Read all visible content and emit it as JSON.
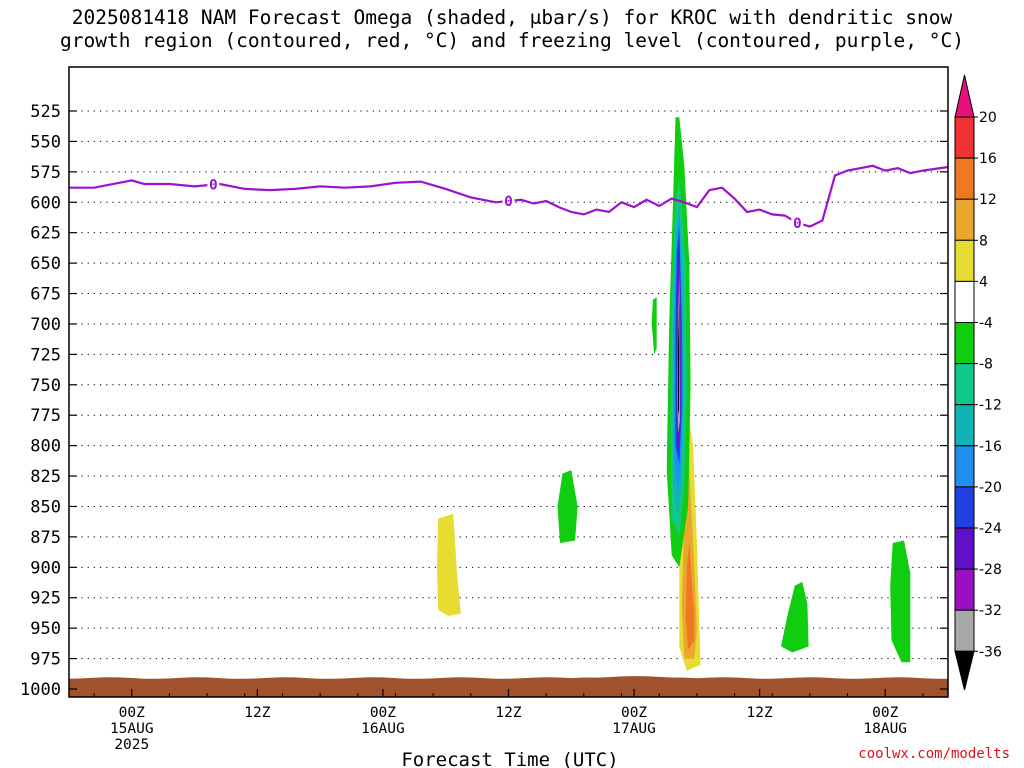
{
  "chart_data": {
    "type": "heatmap",
    "title_lines": [
      "2025081418 NAM Forecast Omega (shaded, μbar/s) for KROC with dendritic snow",
      "growth region (contoured, red, °C) and freezing level (contoured, purple, °C)"
    ],
    "xlabel": "Forecast Time (UTC)",
    "credit": "coolwx.com/modelts",
    "y_ticks": [
      525,
      550,
      575,
      600,
      625,
      650,
      675,
      700,
      725,
      750,
      775,
      800,
      825,
      850,
      875,
      900,
      925,
      950,
      975,
      1000
    ],
    "y_range": [
      1000,
      505
    ],
    "x_range_hours": [
      -5,
      65
    ],
    "x_ticks": [
      {
        "hour": 0,
        "lines": [
          "00Z",
          "15AUG",
          "2025"
        ]
      },
      {
        "hour": 10,
        "lines": [
          "12Z"
        ]
      },
      {
        "hour": 20,
        "lines": [
          "00Z",
          "16AUG"
        ]
      },
      {
        "hour": 30,
        "lines": [
          "12Z"
        ]
      },
      {
        "hour": 40,
        "lines": [
          "00Z",
          "17AUG"
        ]
      },
      {
        "hour": 50,
        "lines": [
          "12Z"
        ]
      },
      {
        "hour": 60,
        "lines": [
          "00Z",
          "18AUG"
        ]
      }
    ],
    "grid": true,
    "colorbar": {
      "labels": [
        "20",
        "16",
        "12",
        "8",
        "4",
        "-4",
        "-8",
        "-12",
        "-16",
        "-20",
        "-24",
        "-28",
        "-32",
        "-36"
      ],
      "colors": [
        "#e8107a",
        "#f03232",
        "#f07820",
        "#e8a830",
        "#e6dc32",
        "#ffffff",
        "#10cd10",
        "#10c88c",
        "#10b4b4",
        "#2090f0",
        "#2040e0",
        "#6010c8",
        "#9a10c0",
        "#a8a8a8",
        "#000000"
      ]
    },
    "freezing_level": {
      "label": "0",
      "color": "#9b12cf",
      "points": [
        [
          -5,
          588
        ],
        [
          -3,
          588
        ],
        [
          -1,
          584
        ],
        [
          0,
          582
        ],
        [
          1,
          585
        ],
        [
          3,
          585
        ],
        [
          5,
          587
        ],
        [
          7,
          585
        ],
        [
          9,
          589
        ],
        [
          11,
          590
        ],
        [
          13,
          589
        ],
        [
          15,
          587
        ],
        [
          17,
          588
        ],
        [
          19,
          587
        ],
        [
          21,
          584
        ],
        [
          23,
          583
        ],
        [
          25,
          589
        ],
        [
          27,
          596
        ],
        [
          29,
          600
        ],
        [
          31,
          598
        ],
        [
          32,
          601
        ],
        [
          33,
          599
        ],
        [
          34,
          604
        ],
        [
          35,
          608
        ],
        [
          36,
          610
        ],
        [
          37,
          606
        ],
        [
          38,
          608
        ],
        [
          39,
          600
        ],
        [
          40,
          604
        ],
        [
          41,
          598
        ],
        [
          42,
          603
        ],
        [
          43,
          597
        ],
        [
          44,
          600
        ],
        [
          45,
          604
        ],
        [
          46,
          590
        ],
        [
          47,
          588
        ],
        [
          48,
          597
        ],
        [
          49,
          608
        ],
        [
          50,
          606
        ],
        [
          51,
          610
        ],
        [
          52,
          611
        ],
        [
          53,
          617
        ],
        [
          54,
          620
        ],
        [
          55,
          615
        ],
        [
          56,
          578
        ],
        [
          57,
          574
        ],
        [
          58,
          572
        ],
        [
          59,
          570
        ],
        [
          60,
          574
        ],
        [
          61,
          572
        ],
        [
          62,
          576
        ],
        [
          63,
          574
        ],
        [
          65,
          571
        ]
      ],
      "label_hours": [
        6.5,
        30,
        53
      ]
    },
    "omega_patches": [
      {
        "value": 6,
        "color": "#e6dc32",
        "points": [
          [
            24.4,
            860
          ],
          [
            25.6,
            856
          ],
          [
            25.9,
            905
          ],
          [
            26.2,
            938
          ],
          [
            25.2,
            940
          ],
          [
            24.4,
            935
          ],
          [
            24.3,
            900
          ]
        ]
      },
      {
        "value": -6,
        "color": "#10cd10",
        "points": [
          [
            34.3,
            823
          ],
          [
            35.0,
            820
          ],
          [
            35.5,
            850
          ],
          [
            35.3,
            878
          ],
          [
            34.1,
            880
          ],
          [
            33.9,
            850
          ]
        ]
      },
      {
        "value": -6,
        "color": "#10cd10",
        "points": [
          [
            41.5,
            680
          ],
          [
            41.8,
            678
          ],
          [
            41.8,
            720
          ],
          [
            41.6,
            725
          ],
          [
            41.4,
            700
          ]
        ]
      },
      {
        "value": -6,
        "color": "#10cd10",
        "points": [
          [
            52.8,
            915
          ],
          [
            53.4,
            912
          ],
          [
            53.8,
            930
          ],
          [
            53.9,
            965
          ],
          [
            52.6,
            970
          ],
          [
            51.7,
            965
          ],
          [
            52.2,
            940
          ]
        ]
      },
      {
        "value": -6,
        "color": "#10cd10",
        "points": [
          [
            60.6,
            880
          ],
          [
            61.5,
            878
          ],
          [
            62.0,
            905
          ],
          [
            62.0,
            978
          ],
          [
            61.3,
            978
          ],
          [
            60.5,
            960
          ],
          [
            60.4,
            915
          ]
        ]
      },
      {
        "value": 6,
        "color": "#e6dc32",
        "points": [
          [
            44.1,
            760
          ],
          [
            44.7,
            800
          ],
          [
            45.0,
            880
          ],
          [
            45.2,
            950
          ],
          [
            45.3,
            980
          ],
          [
            44.2,
            985
          ],
          [
            43.6,
            965
          ],
          [
            43.6,
            900
          ],
          [
            43.8,
            820
          ]
        ]
      },
      {
        "value": 10,
        "color": "#e8a830",
        "points": [
          [
            44.3,
            800
          ],
          [
            44.7,
            880
          ],
          [
            45.0,
            950
          ],
          [
            44.8,
            975
          ],
          [
            44.0,
            975
          ],
          [
            43.8,
            930
          ],
          [
            44.0,
            860
          ]
        ]
      },
      {
        "value": 14,
        "color": "#f07820",
        "points": [
          [
            44.4,
            880
          ],
          [
            44.8,
            940
          ],
          [
            44.8,
            960
          ],
          [
            44.3,
            968
          ],
          [
            44.1,
            940
          ],
          [
            44.2,
            900
          ]
        ]
      },
      {
        "value": -6,
        "color": "#10cd10",
        "points": [
          [
            43.6,
            530
          ],
          [
            44.0,
            570
          ],
          [
            44.4,
            650
          ],
          [
            44.5,
            750
          ],
          [
            44.3,
            850
          ],
          [
            43.6,
            900
          ],
          [
            43.0,
            890
          ],
          [
            42.6,
            820
          ],
          [
            42.8,
            700
          ],
          [
            43.1,
            600
          ],
          [
            43.3,
            530
          ]
        ]
      },
      {
        "value": -10,
        "color": "#10c88c",
        "points": [
          [
            43.6,
            580
          ],
          [
            44.1,
            650
          ],
          [
            44.2,
            750
          ],
          [
            44.0,
            830
          ],
          [
            43.6,
            875
          ],
          [
            43.0,
            860
          ],
          [
            42.9,
            780
          ],
          [
            43.0,
            680
          ],
          [
            43.3,
            600
          ]
        ]
      },
      {
        "value": -14,
        "color": "#10b4b4",
        "points": [
          [
            43.6,
            600
          ],
          [
            43.9,
            660
          ],
          [
            44.0,
            750
          ],
          [
            43.8,
            830
          ],
          [
            43.5,
            860
          ],
          [
            43.1,
            830
          ],
          [
            43.1,
            700
          ],
          [
            43.3,
            620
          ]
        ]
      },
      {
        "value": -18,
        "color": "#2090f0",
        "points": [
          [
            43.6,
            610
          ],
          [
            43.8,
            680
          ],
          [
            43.9,
            760
          ],
          [
            43.7,
            820
          ],
          [
            43.5,
            840
          ],
          [
            43.2,
            810
          ],
          [
            43.2,
            700
          ],
          [
            43.4,
            630
          ]
        ]
      },
      {
        "value": -22,
        "color": "#2040e0",
        "points": [
          [
            43.6,
            620
          ],
          [
            43.8,
            700
          ],
          [
            43.8,
            770
          ],
          [
            43.6,
            815
          ],
          [
            43.3,
            800
          ],
          [
            43.3,
            700
          ],
          [
            43.4,
            640
          ]
        ]
      },
      {
        "value": -26,
        "color": "#6010c8",
        "points": [
          [
            43.6,
            630
          ],
          [
            43.7,
            700
          ],
          [
            43.7,
            780
          ],
          [
            43.5,
            805
          ],
          [
            43.4,
            780
          ],
          [
            43.4,
            700
          ]
        ]
      },
      {
        "value": -30,
        "color": "#9a10c0",
        "points": [
          [
            43.6,
            645
          ],
          [
            43.7,
            700
          ],
          [
            43.7,
            770
          ],
          [
            43.5,
            795
          ],
          [
            43.4,
            770
          ],
          [
            43.45,
            700
          ]
        ]
      },
      {
        "value": -34,
        "color": "#a8a8a8",
        "points": [
          [
            43.6,
            660
          ],
          [
            43.65,
            720
          ],
          [
            43.65,
            780
          ],
          [
            43.5,
            790
          ],
          [
            43.45,
            760
          ],
          [
            43.5,
            700
          ]
        ]
      },
      {
        "value": -38,
        "color": "#000000",
        "points": [
          [
            43.6,
            680
          ],
          [
            43.6,
            730
          ],
          [
            43.58,
            770
          ],
          [
            43.5,
            775
          ],
          [
            43.5,
            720
          ]
        ]
      }
    ],
    "terrain": {
      "color": "#a0522d",
      "top_pressure": 991
    }
  }
}
